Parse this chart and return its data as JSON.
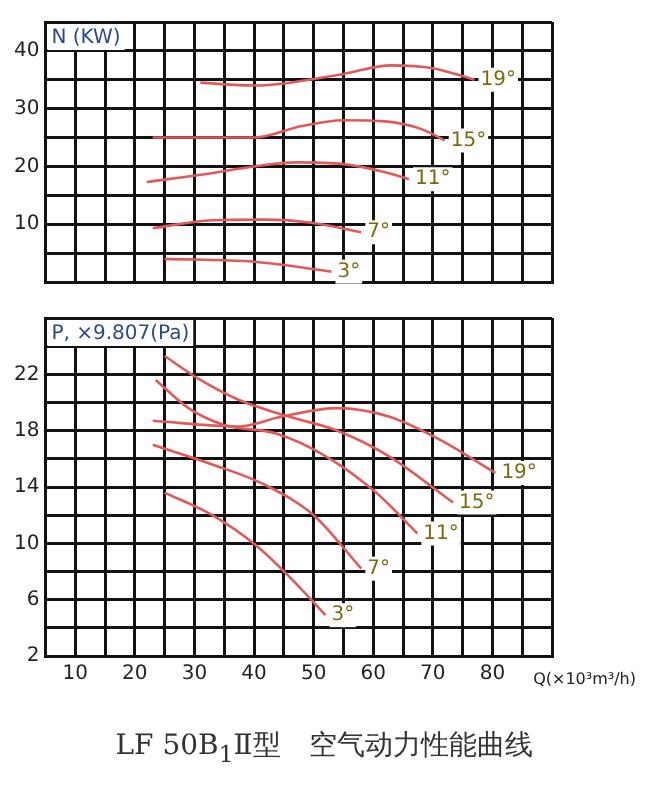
{
  "chart_data": [
    {
      "type": "line",
      "ylabel": "N (KW)",
      "xlim": [
        5,
        90
      ],
      "ylim": [
        0,
        45
      ],
      "xticks": [
        {
          "value": 5,
          "label": null
        },
        10,
        {
          "value": 15,
          "label": null
        },
        20,
        {
          "value": 25,
          "label": null
        },
        30,
        {
          "value": 35,
          "label": null
        },
        40,
        {
          "value": 45,
          "label": null
        },
        50,
        {
          "value": 55,
          "label": null
        },
        60,
        {
          "value": 65,
          "label": null
        },
        70,
        {
          "value": 75,
          "label": null
        },
        80,
        {
          "value": 85,
          "label": null
        },
        {
          "value": 90,
          "label": null
        }
      ],
      "yticks": [
        {
          "value": 0,
          "label": null
        },
        {
          "value": 5,
          "label": null
        },
        10,
        {
          "value": 15,
          "label": null
        },
        20,
        {
          "value": 25,
          "label": null
        },
        30,
        {
          "value": 35,
          "label": null
        },
        40,
        {
          "value": 45,
          "label": null
        }
      ],
      "tick_labels": "y",
      "grid": true,
      "legend": false,
      "marker": "none",
      "line_style": "solid",
      "series": [
        {
          "name": "19°",
          "color": "#e05a5a",
          "x": [
            31,
            40,
            46,
            55,
            63,
            70,
            77
          ],
          "values": [
            34.5,
            34,
            34.5,
            36,
            37.5,
            37,
            35
          ]
        },
        {
          "name": "15°",
          "color": "#e05a5a",
          "x": [
            23,
            40,
            48,
            55,
            62,
            68,
            72
          ],
          "values": [
            25,
            25,
            27,
            28,
            27.8,
            26.5,
            24.5
          ]
        },
        {
          "name": "11°",
          "color": "#e05a5a",
          "x": [
            22,
            32,
            40,
            47,
            55,
            62,
            66
          ],
          "values": [
            17.3,
            18.7,
            20,
            20.7,
            20.4,
            19,
            17.8
          ]
        },
        {
          "name": "7°",
          "color": "#e05a5a",
          "x": [
            23,
            33,
            42,
            50,
            58
          ],
          "values": [
            9.3,
            10.7,
            10.8,
            10.2,
            8.6
          ]
        },
        {
          "name": "3°",
          "color": "#e05a5a",
          "x": [
            25,
            40,
            53
          ],
          "values": [
            4,
            3.5,
            1.8
          ]
        }
      ]
    },
    {
      "type": "line",
      "title": "LF 50B$_{1}$Ⅱ型　空气动力性能曲线",
      "ylabel": "P, ×9.807(Pa)",
      "xlabel": "Q(×10³m³/h)",
      "xlim": [
        5,
        90
      ],
      "ylim": [
        2,
        26
      ],
      "xticks": [
        {
          "value": 5,
          "label": null
        },
        10,
        {
          "value": 15,
          "label": null
        },
        20,
        {
          "value": 25,
          "label": null
        },
        30,
        {
          "value": 35,
          "label": null
        },
        40,
        {
          "value": 45,
          "label": null
        },
        50,
        {
          "value": 55,
          "label": null
        },
        60,
        {
          "value": 65,
          "label": null
        },
        70,
        {
          "value": 75,
          "label": null
        },
        80,
        {
          "value": 85,
          "label": null
        },
        {
          "value": 90,
          "label": null
        }
      ],
      "yticks": [
        2,
        {
          "value": 4,
          "label": null
        },
        6,
        {
          "value": 8,
          "label": null
        },
        10,
        {
          "value": 12,
          "label": null
        },
        14,
        {
          "value": 16,
          "label": null
        },
        18,
        {
          "value": 20,
          "label": null
        },
        22,
        {
          "value": 24,
          "label": null
        },
        {
          "value": 26,
          "label": null
        }
      ],
      "grid": true,
      "legend": false,
      "marker": "none",
      "line_style": "solid",
      "series": [
        {
          "name": "19°",
          "color": "#e05a5a",
          "x": [
            23,
            37.4,
            44.7,
            54,
            62.6,
            71,
            80.5
          ],
          "values": [
            18.7,
            18.3,
            19,
            19.6,
            19,
            17.4,
            15
          ]
        },
        {
          "name": "15°",
          "color": "#e05a5a",
          "x": [
            25,
            31,
            37.4,
            45.8,
            54,
            62.6,
            73.4
          ],
          "values": [
            23.3,
            21.6,
            20.2,
            19,
            18,
            16.2,
            12.9
          ]
        },
        {
          "name": "11°",
          "color": "#e05a5a",
          "x": [
            23.5,
            29,
            35,
            43.7,
            52,
            60.5,
            67.4
          ],
          "values": [
            21.6,
            19.6,
            18.4,
            17.8,
            16.2,
            13.6,
            10.7
          ]
        },
        {
          "name": "7°",
          "color": "#e05a5a",
          "x": [
            23,
            33,
            41.6,
            50,
            58
          ],
          "values": [
            17,
            15.6,
            14.2,
            12,
            8.2
          ]
        },
        {
          "name": "3°",
          "color": "#e05a5a",
          "x": [
            25,
            33,
            40.5,
            46,
            52
          ],
          "values": [
            13.6,
            12,
            9.8,
            7.6,
            4.9
          ]
        }
      ]
    }
  ]
}
